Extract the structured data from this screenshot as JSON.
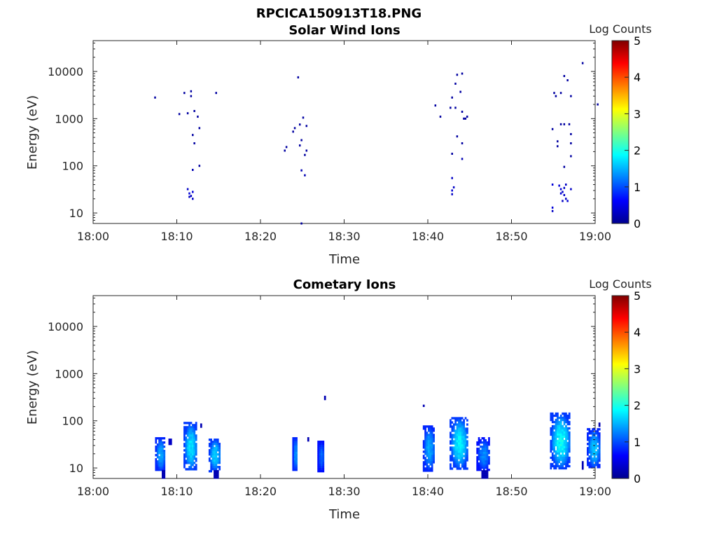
{
  "figure_title": "RPCICA150913T18.PNG",
  "colorbar_colors": [
    "#00008f",
    "#0000ff",
    "#0080ff",
    "#00ffff",
    "#80ff80",
    "#ffff00",
    "#ff8000",
    "#ff0000",
    "#800000"
  ],
  "chart_data": [
    {
      "type": "heatmap",
      "title": "Solar Wind Ions",
      "xlabel": "Time",
      "ylabel": "Energy (eV)",
      "xlim": [
        "18:00",
        "19:00"
      ],
      "xticks": [
        "18:00",
        "18:10",
        "18:20",
        "18:30",
        "18:40",
        "18:50",
        "19:00"
      ],
      "ylim": [
        6,
        45000
      ],
      "yscale": "log",
      "yticks": [
        "10",
        "100",
        "1000",
        "10000"
      ],
      "colorbar": {
        "label": "Log Counts",
        "range": [
          0,
          5
        ],
        "ticks": [
          "0",
          "1",
          "2",
          "3",
          "4",
          "5"
        ]
      },
      "points": [
        {
          "t": 7.3,
          "e": 2800,
          "c": 0.1
        },
        {
          "t": 10.2,
          "e": 1250,
          "c": 0.1
        },
        {
          "t": 10.8,
          "e": 3500,
          "c": 0.1
        },
        {
          "t": 11.2,
          "e": 1300,
          "c": 0.1
        },
        {
          "t": 11.6,
          "e": 3800,
          "c": 0.1
        },
        {
          "t": 11.6,
          "e": 3000,
          "c": 0.1
        },
        {
          "t": 12.0,
          "e": 1450,
          "c": 0.1
        },
        {
          "t": 12.4,
          "e": 1100,
          "c": 0.1
        },
        {
          "t": 12.6,
          "e": 630,
          "c": 0.1
        },
        {
          "t": 11.8,
          "e": 450,
          "c": 0.1
        },
        {
          "t": 12.0,
          "e": 300,
          "c": 0.1
        },
        {
          "t": 11.8,
          "e": 82,
          "c": 0.2
        },
        {
          "t": 12.6,
          "e": 100,
          "c": 0.1
        },
        {
          "t": 14.6,
          "e": 3500,
          "c": 0.1
        },
        {
          "t": 11.2,
          "e": 32,
          "c": 0.3
        },
        {
          "t": 11.4,
          "e": 26,
          "c": 0.4
        },
        {
          "t": 11.6,
          "e": 23,
          "c": 0.3
        },
        {
          "t": 11.8,
          "e": 28,
          "c": 0.4
        },
        {
          "t": 11.8,
          "e": 20,
          "c": 0.3
        },
        {
          "t": 11.4,
          "e": 22,
          "c": 0.3
        },
        {
          "t": 22.8,
          "e": 210,
          "c": 0.1
        },
        {
          "t": 23.0,
          "e": 250,
          "c": 0.1
        },
        {
          "t": 23.8,
          "e": 530,
          "c": 0.1
        },
        {
          "t": 24.0,
          "e": 630,
          "c": 0.1
        },
        {
          "t": 24.4,
          "e": 7500,
          "c": 0.1
        },
        {
          "t": 24.6,
          "e": 750,
          "c": 0.1
        },
        {
          "t": 24.6,
          "e": 270,
          "c": 0.1
        },
        {
          "t": 24.8,
          "e": 350,
          "c": 0.1
        },
        {
          "t": 25.0,
          "e": 1050,
          "c": 0.1
        },
        {
          "t": 25.2,
          "e": 170,
          "c": 0.1
        },
        {
          "t": 25.4,
          "e": 210,
          "c": 0.1
        },
        {
          "t": 25.4,
          "e": 700,
          "c": 0.1
        },
        {
          "t": 24.8,
          "e": 80,
          "c": 0.2
        },
        {
          "t": 25.2,
          "e": 63,
          "c": 0.2
        },
        {
          "t": 24.8,
          "e": 6,
          "c": 0.1
        },
        {
          "t": 40.8,
          "e": 1900,
          "c": 0.1
        },
        {
          "t": 41.4,
          "e": 1100,
          "c": 0.1
        },
        {
          "t": 42.6,
          "e": 1700,
          "c": 0.1
        },
        {
          "t": 42.8,
          "e": 2800,
          "c": 0.1
        },
        {
          "t": 43.2,
          "e": 1700,
          "c": 0.1
        },
        {
          "t": 43.2,
          "e": 5500,
          "c": 0.1
        },
        {
          "t": 43.4,
          "e": 8500,
          "c": 0.1
        },
        {
          "t": 44.0,
          "e": 9000,
          "c": 0.1
        },
        {
          "t": 44.0,
          "e": 1400,
          "c": 0.1
        },
        {
          "t": 44.2,
          "e": 1000,
          "c": 0.1
        },
        {
          "t": 44.4,
          "e": 1000,
          "c": 0.1
        },
        {
          "t": 44.6,
          "e": 1100,
          "c": 0.1
        },
        {
          "t": 43.8,
          "e": 3700,
          "c": 0.1
        },
        {
          "t": 43.4,
          "e": 420,
          "c": 0.1
        },
        {
          "t": 44.0,
          "e": 300,
          "c": 0.1
        },
        {
          "t": 42.8,
          "e": 180,
          "c": 0.1
        },
        {
          "t": 44.0,
          "e": 140,
          "c": 0.2
        },
        {
          "t": 42.8,
          "e": 55,
          "c": 0.3
        },
        {
          "t": 42.8,
          "e": 30,
          "c": 0.4
        },
        {
          "t": 43.0,
          "e": 35,
          "c": 0.3
        },
        {
          "t": 42.8,
          "e": 25,
          "c": 0.3
        },
        {
          "t": 54.8,
          "e": 600,
          "c": 0.1
        },
        {
          "t": 55.0,
          "e": 3500,
          "c": 0.1
        },
        {
          "t": 55.2,
          "e": 3000,
          "c": 0.1
        },
        {
          "t": 55.4,
          "e": 330,
          "c": 0.1
        },
        {
          "t": 55.4,
          "e": 260,
          "c": 0.1
        },
        {
          "t": 55.8,
          "e": 3500,
          "c": 0.1
        },
        {
          "t": 55.8,
          "e": 760,
          "c": 0.1
        },
        {
          "t": 56.2,
          "e": 760,
          "c": 0.1
        },
        {
          "t": 56.2,
          "e": 8000,
          "c": 0.1
        },
        {
          "t": 56.6,
          "e": 6500,
          "c": 0.1
        },
        {
          "t": 57.0,
          "e": 3000,
          "c": 0.1
        },
        {
          "t": 56.8,
          "e": 760,
          "c": 0.1
        },
        {
          "t": 57.0,
          "e": 470,
          "c": 0.1
        },
        {
          "t": 57.0,
          "e": 300,
          "c": 0.1
        },
        {
          "t": 57.0,
          "e": 160,
          "c": 0.1
        },
        {
          "t": 56.2,
          "e": 95,
          "c": 0.1
        },
        {
          "t": 58.4,
          "e": 15000,
          "c": 0.1
        },
        {
          "t": 60.2,
          "e": 2000,
          "c": 0.1
        },
        {
          "t": 54.8,
          "e": 40,
          "c": 0.4
        },
        {
          "t": 54.8,
          "e": 13,
          "c": 0.4
        },
        {
          "t": 54.8,
          "e": 11,
          "c": 0.3
        },
        {
          "t": 55.6,
          "e": 38,
          "c": 0.4
        },
        {
          "t": 55.8,
          "e": 32,
          "c": 0.4
        },
        {
          "t": 56.0,
          "e": 28,
          "c": 0.3
        },
        {
          "t": 56.2,
          "e": 24,
          "c": 0.3
        },
        {
          "t": 56.0,
          "e": 18,
          "c": 0.3
        },
        {
          "t": 56.4,
          "e": 20,
          "c": 0.3
        },
        {
          "t": 56.6,
          "e": 18,
          "c": 0.4
        },
        {
          "t": 56.4,
          "e": 40,
          "c": 0.3
        },
        {
          "t": 57.0,
          "e": 32,
          "c": 0.3
        },
        {
          "t": 55.8,
          "e": 26,
          "c": 0.4
        },
        {
          "t": 56.2,
          "e": 34,
          "c": 0.3
        }
      ]
    },
    {
      "type": "heatmap",
      "title": "Cometary Ions",
      "xlabel": "Time",
      "ylabel": "Energy (eV)",
      "xlim": [
        "18:00",
        "19:00"
      ],
      "xticks": [
        "18:00",
        "18:10",
        "18:20",
        "18:30",
        "18:40",
        "18:50",
        "19:00"
      ],
      "ylim": [
        6,
        45000
      ],
      "yscale": "log",
      "yticks": [
        "10",
        "100",
        "1000",
        "10000"
      ],
      "colorbar": {
        "label": "Log Counts",
        "range": [
          0,
          5
        ],
        "ticks": [
          "0",
          "1",
          "2",
          "3",
          "4",
          "5"
        ]
      },
      "blobs": [
        {
          "t0": 7.4,
          "t1": 8.6,
          "e0": 9,
          "e1": 45,
          "c": 0.8,
          "peak": 1.6
        },
        {
          "t0": 8.2,
          "t1": 8.5,
          "e0": 6,
          "e1": 9,
          "c": 0.2
        },
        {
          "t0": 9.0,
          "t1": 9.4,
          "e0": 32,
          "e1": 42,
          "c": 0.3
        },
        {
          "t0": 10.8,
          "t1": 12.4,
          "e0": 9,
          "e1": 95,
          "c": 0.9,
          "peak": 1.9
        },
        {
          "t0": 12.8,
          "t1": 13.0,
          "e0": 78,
          "e1": 88,
          "c": 0.2
        },
        {
          "t0": 13.8,
          "t1": 15.2,
          "e0": 9,
          "e1": 42,
          "c": 0.9,
          "peak": 1.8
        },
        {
          "t0": 14.4,
          "t1": 15.0,
          "e0": 6,
          "e1": 9,
          "c": 0.2
        },
        {
          "t0": 23.8,
          "t1": 24.4,
          "e0": 9,
          "e1": 45,
          "c": 0.8,
          "peak": 1.5
        },
        {
          "t0": 25.6,
          "t1": 25.8,
          "e0": 38,
          "e1": 45,
          "c": 0.2
        },
        {
          "t0": 26.8,
          "t1": 27.6,
          "e0": 9,
          "e1": 38,
          "c": 0.7,
          "peak": 1.2
        },
        {
          "t0": 27.6,
          "t1": 27.8,
          "e0": 300,
          "e1": 340,
          "c": 0.2
        },
        {
          "t0": 39.4,
          "t1": 40.8,
          "e0": 9,
          "e1": 80,
          "c": 0.8,
          "peak": 1.6
        },
        {
          "t0": 39.4,
          "t1": 39.6,
          "e0": 200,
          "e1": 220,
          "c": 0.2
        },
        {
          "t0": 42.6,
          "t1": 44.8,
          "e0": 10,
          "e1": 120,
          "c": 0.9,
          "peak": 2.0
        },
        {
          "t0": 45.8,
          "t1": 47.4,
          "e0": 9,
          "e1": 45,
          "c": 0.7,
          "peak": 1.4
        },
        {
          "t0": 46.4,
          "t1": 47.2,
          "e0": 6,
          "e1": 9,
          "c": 0.2
        },
        {
          "t0": 54.6,
          "t1": 57.0,
          "e0": 10,
          "e1": 150,
          "c": 0.9,
          "peak": 2.1
        },
        {
          "t0": 58.4,
          "t1": 58.6,
          "e0": 10,
          "e1": 14,
          "c": 0.2
        },
        {
          "t0": 59.0,
          "t1": 60.6,
          "e0": 10,
          "e1": 70,
          "c": 0.8,
          "peak": 1.7
        },
        {
          "t0": 60.4,
          "t1": 60.6,
          "e0": 82,
          "e1": 92,
          "c": 0.2
        }
      ]
    }
  ]
}
